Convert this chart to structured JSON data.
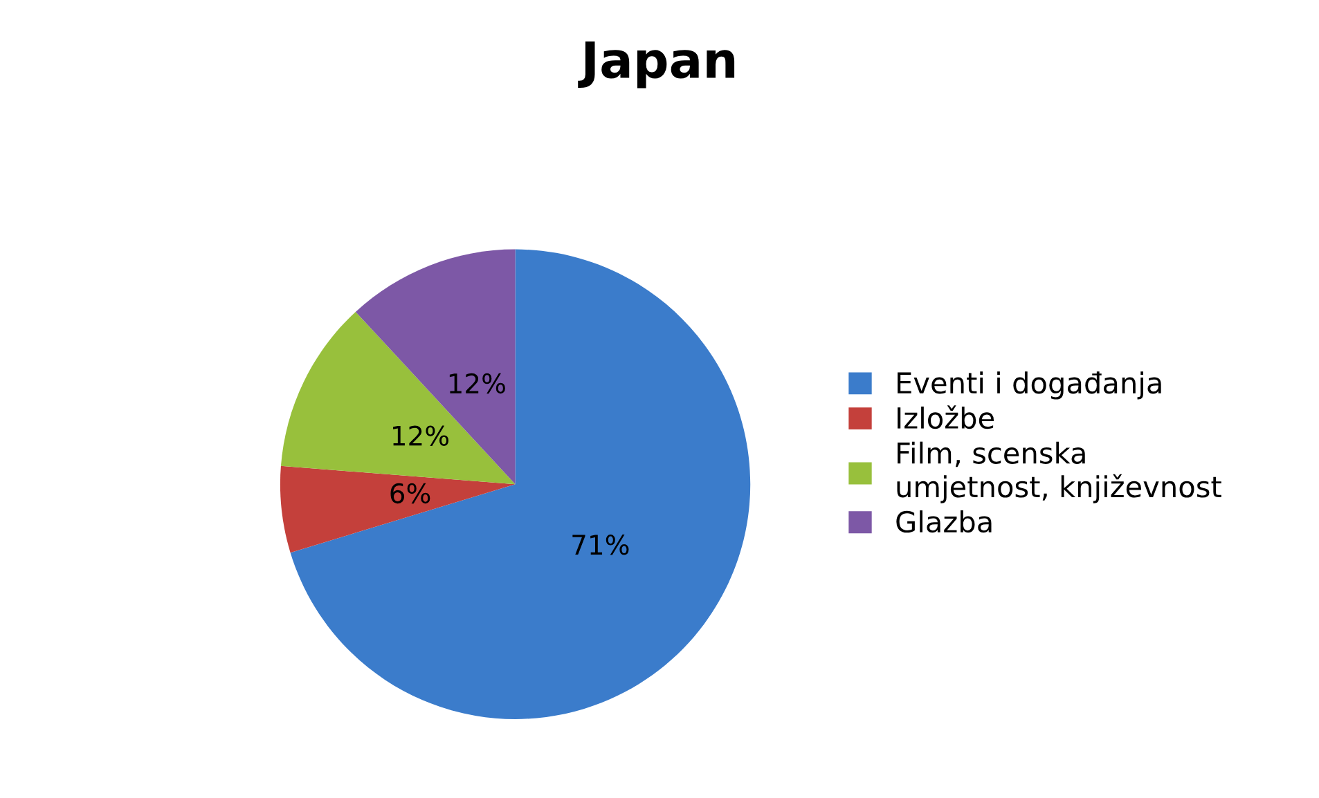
{
  "chart_data": {
    "type": "pie",
    "title": "Japan",
    "categories": [
      "Eventi i događanja",
      "Izložbe",
      "Film, scenska umjetnost, književnost",
      "Glazba"
    ],
    "values": [
      71,
      6,
      12,
      12
    ],
    "value_labels": [
      "71%",
      "6%",
      "12%",
      "12%"
    ],
    "colors": [
      "#3b7ccb",
      "#c4403b",
      "#98c03c",
      "#7d58a6"
    ],
    "legend": "right"
  }
}
